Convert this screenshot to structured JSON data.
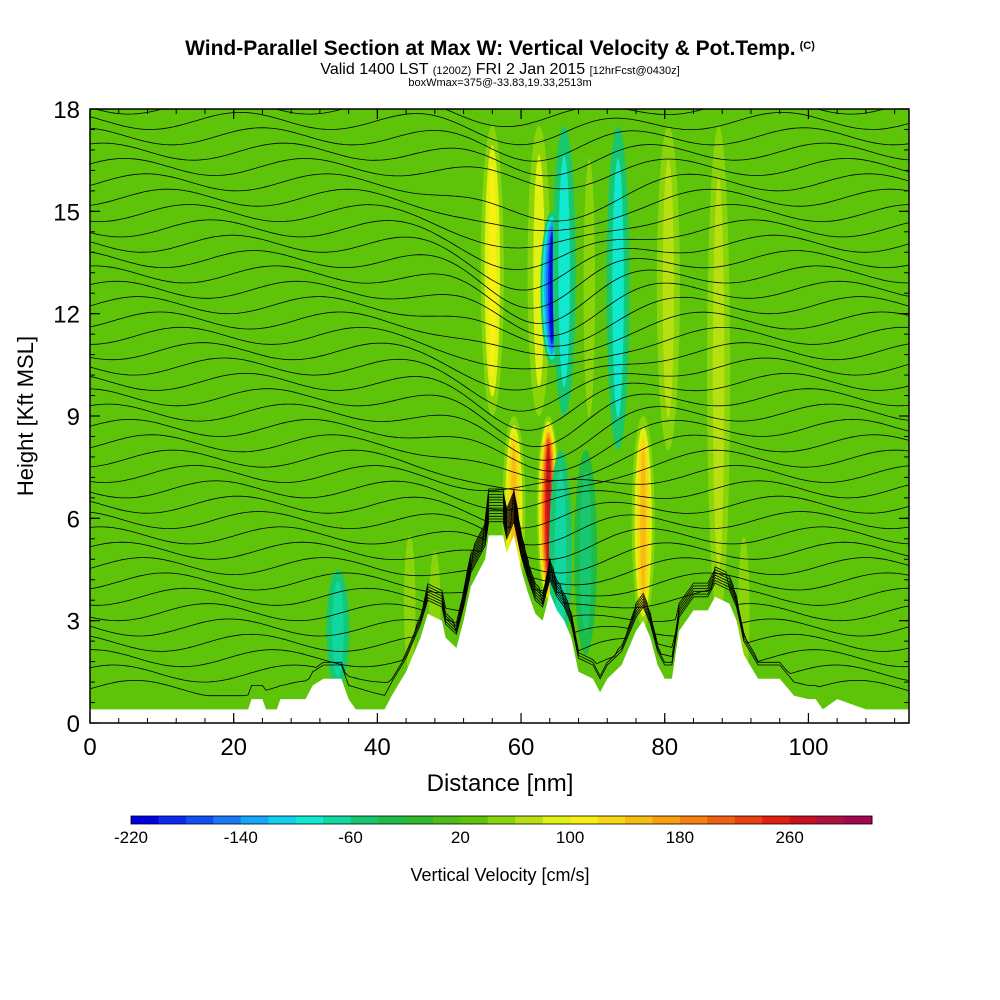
{
  "header": {
    "title": "Wind-Parallel Section at Max W: Vertical Velocity & Pot.Temp.",
    "copyright": "(C)",
    "subtitle_main": "Valid 1400 LST",
    "subtitle_utc": "(1200Z)",
    "subtitle_date": "FRI 2 Jan 2015",
    "subtitle_fcst": "[12hrFcst@0430z]",
    "info": "boxWmax=375@-33.83,19.33,2513m"
  },
  "colors": {
    "background_green": "#5ec40a",
    "terrain": "#ffffff",
    "contour": "#000000"
  },
  "chart_data": {
    "type": "heatmap",
    "title": "Wind-Parallel Section at Max W: Vertical Velocity & Pot.Temp.",
    "xlabel": "Distance [nm]",
    "ylabel": "Height [Kft MSL]",
    "xlim": [
      0,
      114
    ],
    "ylim": [
      0,
      18
    ],
    "x_ticks": [
      0,
      20,
      40,
      60,
      80,
      100
    ],
    "y_ticks": [
      0,
      3,
      6,
      9,
      12,
      15,
      18
    ],
    "colorbar": {
      "label": "Vertical Velocity [cm/s]",
      "levels": [
        -220,
        -200,
        -180,
        -160,
        -140,
        -120,
        -100,
        -80,
        -60,
        -40,
        -20,
        0,
        20,
        40,
        60,
        80,
        100,
        120,
        140,
        160,
        180,
        200,
        220,
        240,
        260,
        280,
        300
      ],
      "colors": [
        "#0000e0",
        "#0a28f0",
        "#1250f5",
        "#1a78f8",
        "#14a8f8",
        "#10d0f0",
        "#10e8d0",
        "#10d8a0",
        "#18c870",
        "#20bc48",
        "#30b828",
        "#4cbc18",
        "#5ec40a",
        "#8ad40a",
        "#b8e010",
        "#e0f010",
        "#f8f010",
        "#f8d810",
        "#f8bc10",
        "#f8a010",
        "#f88010",
        "#f06010",
        "#e84010",
        "#e02010",
        "#c81020",
        "#b01040",
        "#a00850"
      ],
      "tick_labels": [
        -220,
        -140,
        -60,
        20,
        100,
        180,
        260
      ]
    },
    "updrafts": [
      {
        "x": 63.8,
        "y0": 3.5,
        "y1": 9.0,
        "w": 280
      },
      {
        "x": 59.0,
        "y0": 3.5,
        "y1": 9.0,
        "w": 160
      },
      {
        "x": 77.0,
        "y0": 2.8,
        "y1": 9.0,
        "w": 160
      },
      {
        "x": 56.0,
        "y0": 9.0,
        "y1": 17.5,
        "w": 120
      },
      {
        "x": 62.5,
        "y0": 9.0,
        "y1": 17.5,
        "w": 90
      },
      {
        "x": 80.5,
        "y0": 8.0,
        "y1": 17.5,
        "w": 80
      },
      {
        "x": 87.5,
        "y0": 3.0,
        "y1": 17.5,
        "w": 80
      },
      {
        "x": 69.5,
        "y0": 8.0,
        "y1": 17.5,
        "w": 60
      },
      {
        "x": 44.5,
        "y0": 1.0,
        "y1": 6.0,
        "w": 60
      },
      {
        "x": 91.0,
        "y0": 0.5,
        "y1": 6.0,
        "w": 60
      },
      {
        "x": 48.0,
        "y0": 1.0,
        "y1": 5.5,
        "w": 50
      }
    ],
    "downdrafts": [
      {
        "x": 64.3,
        "y0": 10.5,
        "y1": 15.0,
        "w": -220
      },
      {
        "x": 66.0,
        "y0": 9.0,
        "y1": 17.5,
        "w": -80
      },
      {
        "x": 73.5,
        "y0": 8.0,
        "y1": 17.5,
        "w": -90
      },
      {
        "x": 34.5,
        "y0": 1.0,
        "y1": 4.5,
        "w": -60
      },
      {
        "x": 65.5,
        "y0": 2.0,
        "y1": 8.0,
        "w": -60
      },
      {
        "x": 69.0,
        "y0": 2.0,
        "y1": 8.0,
        "w": -40
      }
    ],
    "terrain_profile": [
      [
        0,
        0.4
      ],
      [
        22,
        0.4
      ],
      [
        22.5,
        0.7
      ],
      [
        24,
        0.7
      ],
      [
        24.5,
        0.4
      ],
      [
        26,
        0.4
      ],
      [
        26.5,
        0.7
      ],
      [
        30,
        0.7
      ],
      [
        31,
        1.1
      ],
      [
        32.5,
        1.3
      ],
      [
        35,
        1.3
      ],
      [
        36,
        0.7
      ],
      [
        37,
        0.4
      ],
      [
        41,
        0.4
      ],
      [
        42,
        0.8
      ],
      [
        44,
        1.5
      ],
      [
        46,
        2.5
      ],
      [
        47,
        3.2
      ],
      [
        49,
        3.0
      ],
      [
        49.5,
        2.5
      ],
      [
        51,
        2.2
      ],
      [
        52,
        3.0
      ],
      [
        53,
        4.0
      ],
      [
        55,
        4.8
      ],
      [
        55.5,
        5.5
      ],
      [
        57.5,
        5.5
      ],
      [
        58,
        5.0
      ],
      [
        59,
        5.5
      ],
      [
        59.5,
        5.0
      ],
      [
        60,
        4.5
      ],
      [
        61,
        3.8
      ],
      [
        62,
        3.2
      ],
      [
        63,
        3.0
      ],
      [
        64,
        3.8
      ],
      [
        65,
        3.3
      ],
      [
        66,
        3.0
      ],
      [
        67,
        2.5
      ],
      [
        68,
        1.5
      ],
      [
        70,
        1.3
      ],
      [
        71,
        0.9
      ],
      [
        72,
        1.3
      ],
      [
        74,
        1.7
      ],
      [
        76,
        2.7
      ],
      [
        77,
        3.0
      ],
      [
        78,
        2.5
      ],
      [
        79,
        1.7
      ],
      [
        80,
        1.3
      ],
      [
        81,
        1.3
      ],
      [
        82,
        2.7
      ],
      [
        84,
        3.3
      ],
      [
        86,
        3.3
      ],
      [
        87,
        3.7
      ],
      [
        89,
        3.5
      ],
      [
        90,
        3.0
      ],
      [
        91,
        2.0
      ],
      [
        93,
        1.3
      ],
      [
        96,
        1.3
      ],
      [
        98,
        0.8
      ],
      [
        100,
        0.7
      ],
      [
        101,
        0.7
      ],
      [
        102,
        0.4
      ],
      [
        104,
        0.7
      ],
      [
        108,
        0.4
      ],
      [
        114,
        0.4
      ]
    ]
  }
}
